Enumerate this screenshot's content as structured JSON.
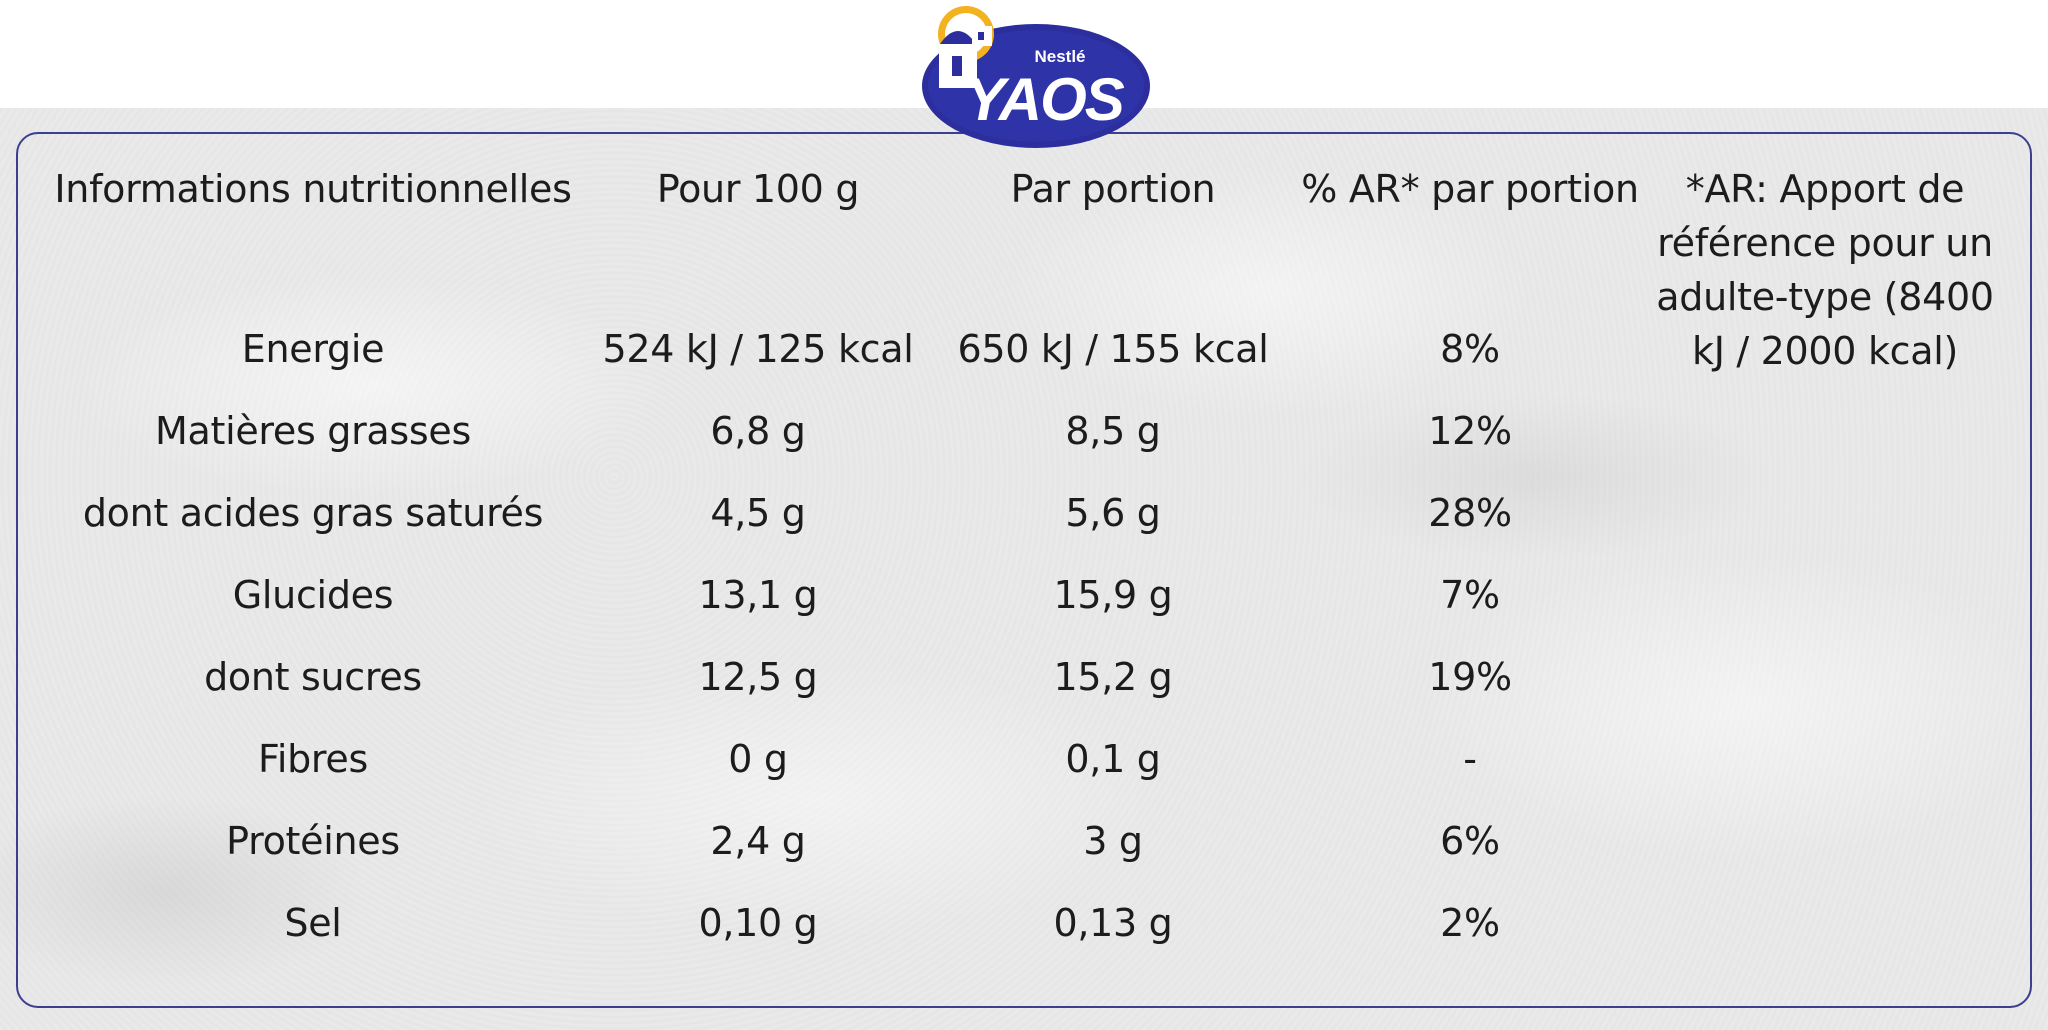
{
  "brand": {
    "maker": "Nestlé",
    "name": "YAOS",
    "colors": {
      "primary": "#2b2e9c",
      "accent": "#f3b21f",
      "frame": "#3c3f8f"
    }
  },
  "table": {
    "headers": [
      "Informations nutritionnelles",
      "Pour 100 g",
      "Par portion",
      "% AR* par portion"
    ],
    "rows": [
      {
        "label": "Energie",
        "per_100g": "524 kJ / 125 kcal",
        "per_portion": "650 kJ / 155 kcal",
        "ar_pct": "8%"
      },
      {
        "label": "Matières grasses",
        "per_100g": "6,8 g",
        "per_portion": "8,5 g",
        "ar_pct": "12%"
      },
      {
        "label": "dont acides gras saturés",
        "per_100g": "4,5 g",
        "per_portion": "5,6 g",
        "ar_pct": "28%"
      },
      {
        "label": "Glucides",
        "per_100g": "13,1 g",
        "per_portion": "15,9 g",
        "ar_pct": "7%"
      },
      {
        "label": "dont sucres",
        "per_100g": "12,5 g",
        "per_portion": "15,2 g",
        "ar_pct": "19%"
      },
      {
        "label": "Fibres",
        "per_100g": "0 g",
        "per_portion": "0,1 g",
        "ar_pct": "-"
      },
      {
        "label": "Protéines",
        "per_100g": "2,4 g",
        "per_portion": "3 g",
        "ar_pct": "6%"
      },
      {
        "label": "Sel",
        "per_100g": "0,10 g",
        "per_portion": "0,13 g",
        "ar_pct": "2%"
      }
    ]
  },
  "footnote": "*AR: Apport de référence pour un adulte-type (8400 kJ / 2000 kcal)"
}
